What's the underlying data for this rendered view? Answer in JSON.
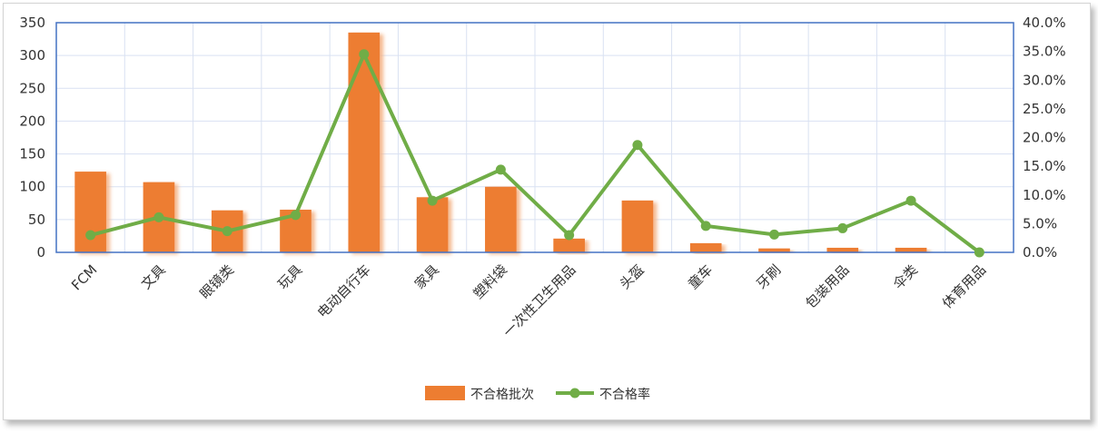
{
  "chart_data": {
    "type": "bar+line",
    "categories": [
      "FCM",
      "文具",
      "眼镜类",
      "玩具",
      "电动自行车",
      "家具",
      "塑料袋",
      "一次性卫生用品",
      "头盔",
      "童车",
      "牙刷",
      "包装用品",
      "伞类",
      "体育用品"
    ],
    "series": [
      {
        "name": "不合格批次",
        "type": "bar",
        "axis": "left",
        "color": "#ED7D31",
        "values": [
          123,
          107,
          64,
          65,
          335,
          84,
          100,
          21,
          79,
          14,
          6,
          7,
          7,
          0
        ]
      },
      {
        "name": "不合格率",
        "type": "line",
        "axis": "right",
        "color": "#70AD47",
        "values": [
          0.03,
          0.061,
          0.037,
          0.065,
          0.345,
          0.09,
          0.144,
          0.03,
          0.187,
          0.046,
          0.031,
          0.042,
          0.09,
          0.0
        ]
      }
    ],
    "ylim_left": [
      0,
      350
    ],
    "yticks_left": [
      0,
      50,
      100,
      150,
      200,
      250,
      300,
      350
    ],
    "ylim_right": [
      0,
      0.4
    ],
    "yticks_right": [
      "0.0%",
      "5.0%",
      "10.0%",
      "15.0%",
      "20.0%",
      "25.0%",
      "30.0%",
      "35.0%",
      "40.0%"
    ],
    "grid": true,
    "legend_position": "bottom",
    "x_label_rotation": -45,
    "frame_color": "#4472C4",
    "grid_color": "#D9E1F2"
  }
}
